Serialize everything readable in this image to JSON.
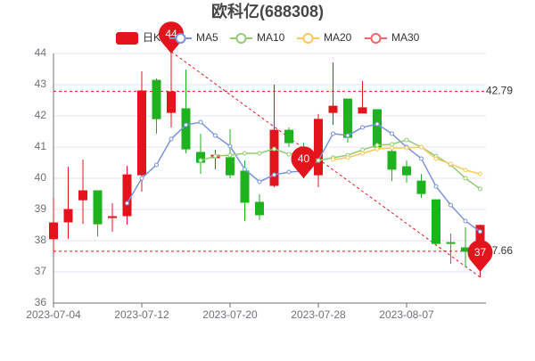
{
  "chart_data": {
    "type": "candlestick",
    "title": "欧科亿(688308)",
    "categories": [
      "2023-07-04",
      null,
      null,
      null,
      null,
      null,
      "2023-07-12",
      null,
      null,
      null,
      null,
      null,
      "2023-07-20",
      null,
      null,
      null,
      null,
      null,
      "2023-07-28",
      null,
      null,
      null,
      null,
      null,
      "2023-08-07",
      null,
      null,
      null,
      null,
      null
    ],
    "candles": {
      "name": "日K",
      "up_color": "#e4141c",
      "down_color": "#1fb21f",
      "open": [
        38.06,
        38.6,
        39.31,
        39.6,
        38.74,
        38.8,
        40.11,
        43.14,
        42.11,
        42.23,
        40.83,
        40.66,
        40.66,
        40.23,
        39.23,
        39.77,
        41.54,
        40.91,
        40.11,
        42.11,
        42.54,
        42.09,
        42.2,
        40.86,
        40.37,
        39.91,
        39.31,
        37.94,
        37.77,
        37.43
      ],
      "high": [
        39.37,
        40.37,
        40.6,
        39.6,
        39.2,
        40.4,
        43.43,
        43.2,
        44.06,
        43.49,
        41.43,
        40.91,
        41.57,
        40.57,
        39.49,
        43.0,
        41.63,
        41.14,
        42.06,
        43.71,
        42.54,
        43.11,
        42.2,
        41.14,
        40.57,
        40.14,
        39.31,
        38.23,
        38.43,
        38.51
      ],
      "low": [
        37.57,
        38.06,
        38.54,
        38.14,
        38.29,
        38.51,
        39.57,
        41.43,
        41.63,
        40.8,
        40.14,
        40.29,
        40.0,
        38.63,
        38.66,
        39.71,
        41.0,
        40.0,
        39.71,
        41.71,
        41.14,
        42.09,
        40.86,
        39.91,
        39.86,
        39.37,
        37.83,
        37.26,
        37.14,
        36.83
      ],
      "close": [
        38.57,
        39.0,
        39.6,
        38.54,
        38.77,
        40.11,
        42.8,
        41.91,
        42.77,
        40.94,
        40.51,
        40.74,
        40.11,
        39.23,
        38.83,
        41.54,
        41.14,
        40.29,
        41.89,
        42.31,
        41.31,
        42.26,
        41.0,
        40.29,
        40.11,
        39.51,
        37.91,
        37.91,
        37.66,
        38.49
      ]
    },
    "series": [
      {
        "name": "MA5",
        "color": "#7b93dc",
        "values": [
          null,
          null,
          null,
          null,
          null,
          39.2,
          40.0,
          40.43,
          41.26,
          41.71,
          41.8,
          41.37,
          41.03,
          40.29,
          39.89,
          40.11,
          40.2,
          40.23,
          40.57,
          41.43,
          41.37,
          41.63,
          41.74,
          41.43,
          41.0,
          40.63,
          39.74,
          39.14,
          38.63,
          38.29
        ]
      },
      {
        "name": "MA10",
        "color": "#91cc75",
        "values": [
          null,
          null,
          null,
          null,
          null,
          null,
          null,
          null,
          null,
          null,
          40.57,
          40.71,
          40.74,
          40.8,
          40.8,
          40.94,
          40.77,
          40.86,
          40.57,
          40.66,
          40.74,
          40.91,
          41.06,
          41.09,
          41.23,
          41.0,
          40.71,
          40.43,
          40.0,
          39.66
        ]
      },
      {
        "name": "MA20",
        "color": "#fac858",
        "values": [
          null,
          null,
          null,
          null,
          null,
          null,
          null,
          null,
          null,
          null,
          null,
          null,
          null,
          null,
          null,
          null,
          null,
          null,
          null,
          40.6,
          40.66,
          40.8,
          40.94,
          40.97,
          40.97,
          41.0,
          40.63,
          40.46,
          40.26,
          40.14
        ]
      },
      {
        "name": "MA30",
        "color": "#ee6666",
        "values": [
          null,
          null,
          null,
          null,
          null,
          null,
          null,
          null,
          null,
          null,
          null,
          null,
          null,
          null,
          null,
          null,
          null,
          null,
          null,
          null,
          null,
          null,
          null,
          null,
          null,
          null,
          null,
          null,
          null,
          null
        ]
      }
    ],
    "marker_values": [
      null,
      null,
      null,
      null,
      null,
      null,
      null,
      null,
      44,
      null,
      null,
      null,
      null,
      null,
      null,
      null,
      null,
      40,
      null,
      null,
      null,
      null,
      null,
      null,
      null,
      null,
      null,
      null,
      null,
      37
    ],
    "marker_color": "#e4141c",
    "reference_lines": [
      42.79,
      37.66
    ],
    "ylim": [
      36,
      44
    ],
    "yticks": [
      36,
      37,
      38,
      39,
      40,
      41,
      42,
      43,
      44
    ],
    "grid": true
  }
}
